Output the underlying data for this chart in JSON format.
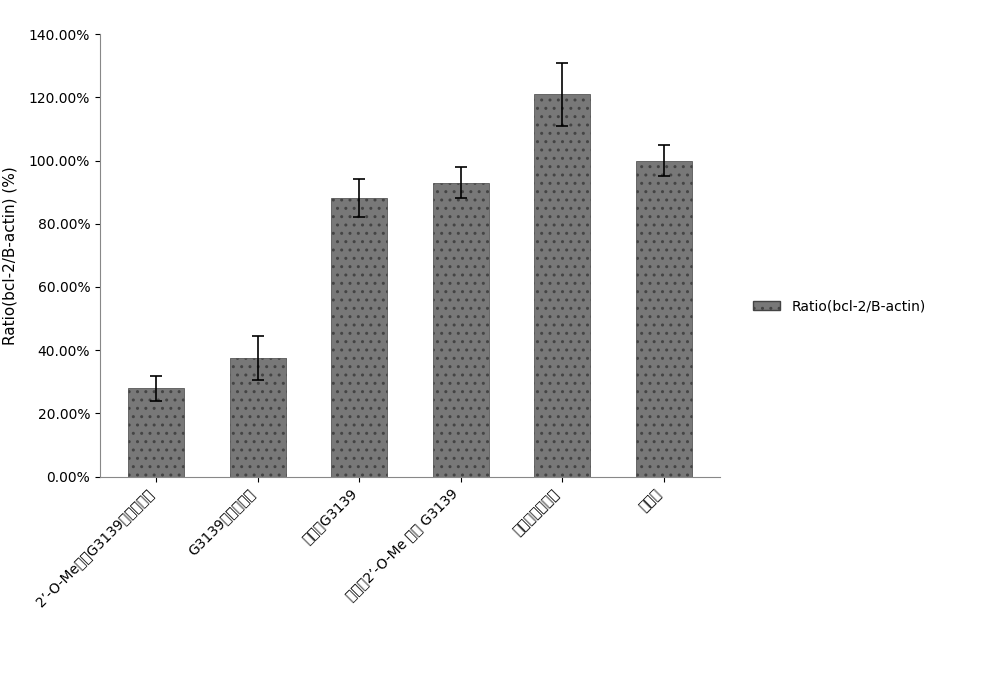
{
  "categories": [
    "2’-O-Me修饰G3139脂质纳米粒",
    "G3139脂质纳米粒",
    "游离的G3139",
    "游离的2’-O-Me 修饰 G3139",
    "空白脂质纳米粒",
    "对照组"
  ],
  "values": [
    0.28,
    0.375,
    0.88,
    0.93,
    1.21,
    1.0
  ],
  "errors": [
    0.04,
    0.07,
    0.06,
    0.05,
    0.1,
    0.05
  ],
  "bar_color": "#787878",
  "ylabel": "Ratio(bcl-2/B-actin) (%)",
  "ylim": [
    0,
    1.4
  ],
  "yticks": [
    0.0,
    0.2,
    0.4,
    0.6,
    0.8,
    1.0,
    1.2,
    1.4
  ],
  "ytick_labels": [
    "0.00%",
    "20.00%",
    "40.00%",
    "60.00%",
    "80.00%",
    "100.00%",
    "120.00%",
    "140.00%"
  ],
  "legend_label": "Ratio(bcl-2/B-actin)",
  "background_color": "#ffffff",
  "hatch": "..",
  "tick_fontsize": 10,
  "ylabel_fontsize": 11,
  "legend_fontsize": 10
}
